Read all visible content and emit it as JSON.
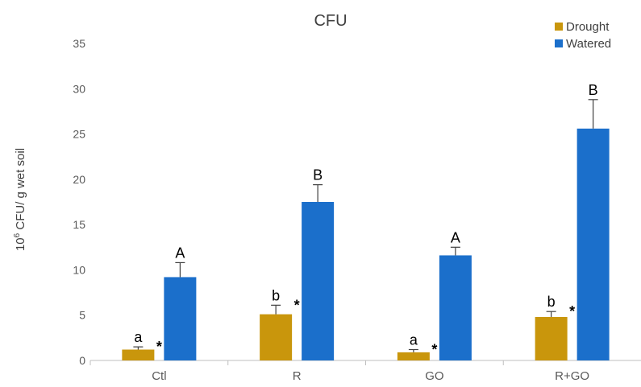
{
  "chart_data": {
    "type": "bar",
    "title": "CFU",
    "ylabel_sup": "6",
    "ylabel_prefix": "10",
    "ylabel_rest": " CFU/ g wet soil",
    "xlabel": "",
    "ylim": [
      0,
      35
    ],
    "yticks": [
      0,
      5,
      10,
      15,
      20,
      25,
      30,
      35
    ],
    "categories": [
      "Ctl",
      "R",
      "GO",
      "R+GO"
    ],
    "legend_position": "top-right",
    "grid": false,
    "series": [
      {
        "name": "Drought",
        "color": "#C9960C",
        "values": [
          1.2,
          5.1,
          0.9,
          4.8
        ],
        "errors": [
          0.3,
          1.0,
          0.3,
          0.6
        ],
        "letters": [
          "a",
          "b",
          "a",
          "b"
        ]
      },
      {
        "name": "Watered",
        "color": "#1B6FCB",
        "values": [
          9.2,
          17.5,
          11.6,
          25.6
        ],
        "errors": [
          1.6,
          1.9,
          0.9,
          3.2
        ],
        "letters": [
          "A",
          "B",
          "A",
          "B"
        ]
      }
    ],
    "significance_marks": [
      "*",
      "*",
      "*",
      "*"
    ]
  }
}
